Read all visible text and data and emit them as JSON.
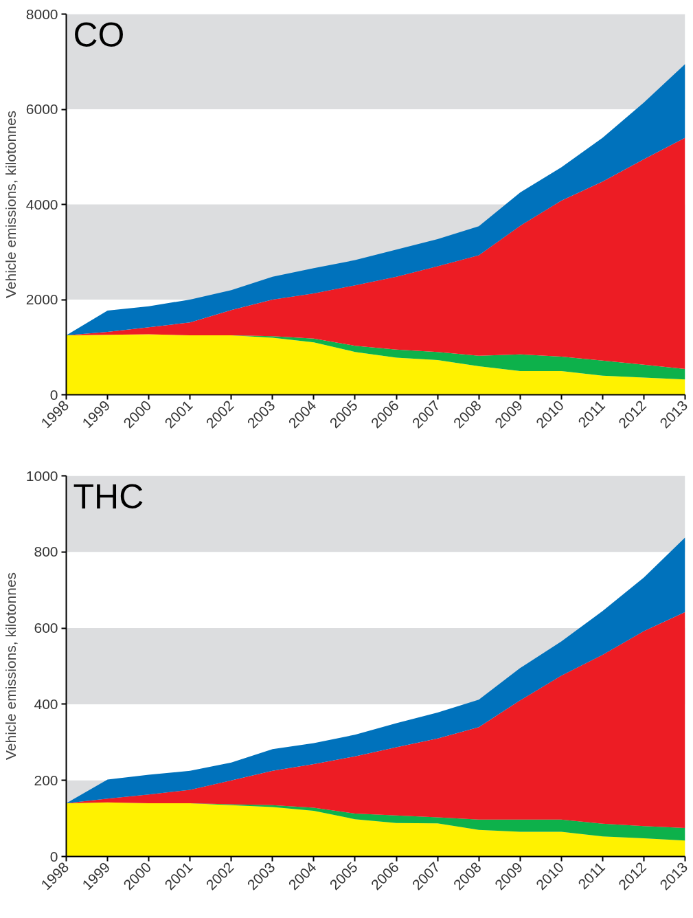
{
  "chart_data": [
    {
      "type": "area",
      "title": "CO",
      "ylabel": "Vehicle emissions, kilotonnes",
      "stacked": true,
      "x": [
        1998,
        1999,
        2000,
        2001,
        2002,
        2003,
        2004,
        2005,
        2006,
        2007,
        2008,
        2009,
        2010,
        2011,
        2012,
        2013
      ],
      "xlim": [
        1998,
        2013
      ],
      "xticks": [
        1998,
        1999,
        2000,
        2001,
        2002,
        2003,
        2004,
        2005,
        2006,
        2007,
        2008,
        2009,
        2010,
        2011,
        2012,
        2013
      ],
      "ylim": [
        0,
        8000
      ],
      "yticks": [
        0,
        2000,
        4000,
        6000,
        8000
      ],
      "bands": [
        {
          "axis": "y",
          "from": 2000,
          "to": 4000,
          "color": "#dcdddf"
        },
        {
          "axis": "y",
          "from": 6000,
          "to": 8000,
          "color": "#dcdddf"
        }
      ],
      "series": [
        {
          "color": "#fff200",
          "values": [
            1250,
            1260,
            1270,
            1250,
            1250,
            1200,
            1100,
            900,
            780,
            730,
            600,
            500,
            500,
            400,
            360,
            320
          ]
        },
        {
          "color": "#0db14b",
          "values": [
            0,
            0,
            0,
            0,
            0,
            30,
            80,
            130,
            170,
            170,
            220,
            350,
            300,
            320,
            270,
            220
          ]
        },
        {
          "color": "#ed1c24",
          "values": [
            0,
            60,
            150,
            270,
            530,
            770,
            950,
            1270,
            1530,
            1800,
            2110,
            2700,
            3280,
            3760,
            4320,
            4860
          ]
        },
        {
          "color": "#0072bc",
          "values": [
            0,
            450,
            440,
            480,
            420,
            480,
            530,
            530,
            570,
            570,
            610,
            700,
            700,
            920,
            1190,
            1550
          ]
        }
      ]
    },
    {
      "type": "area",
      "title": "THC",
      "ylabel": "Vehicle emissions, kilotonnes",
      "stacked": true,
      "x": [
        1998,
        1999,
        2000,
        2001,
        2002,
        2003,
        2004,
        2005,
        2006,
        2007,
        2008,
        2009,
        2010,
        2011,
        2012,
        2013
      ],
      "xlim": [
        1998,
        2013
      ],
      "xticks": [
        1998,
        1999,
        2000,
        2001,
        2002,
        2003,
        2004,
        2005,
        2006,
        2007,
        2008,
        2009,
        2010,
        2011,
        2012,
        2013
      ],
      "ylim": [
        0,
        1000
      ],
      "yticks": [
        0,
        200,
        400,
        600,
        800,
        1000
      ],
      "bands": [
        {
          "axis": "y",
          "from": 0,
          "to": 200,
          "color": "#dcdddf"
        },
        {
          "axis": "y",
          "from": 400,
          "to": 600,
          "color": "#dcdddf"
        },
        {
          "axis": "y",
          "from": 800,
          "to": 1000,
          "color": "#dcdddf"
        }
      ],
      "series": [
        {
          "color": "#fff200",
          "values": [
            140,
            142,
            140,
            140,
            135,
            130,
            120,
            98,
            88,
            87,
            70,
            65,
            65,
            53,
            48,
            42
          ]
        },
        {
          "color": "#0db14b",
          "values": [
            0,
            0,
            0,
            0,
            2,
            5,
            8,
            15,
            20,
            16,
            27,
            32,
            32,
            33,
            32,
            33
          ]
        },
        {
          "color": "#ed1c24",
          "values": [
            0,
            10,
            23,
            35,
            63,
            90,
            115,
            150,
            179,
            207,
            243,
            313,
            378,
            444,
            512,
            567
          ]
        },
        {
          "color": "#0072bc",
          "values": [
            0,
            50,
            52,
            50,
            47,
            57,
            55,
            57,
            63,
            68,
            72,
            85,
            90,
            115,
            141,
            196
          ]
        }
      ]
    }
  ]
}
